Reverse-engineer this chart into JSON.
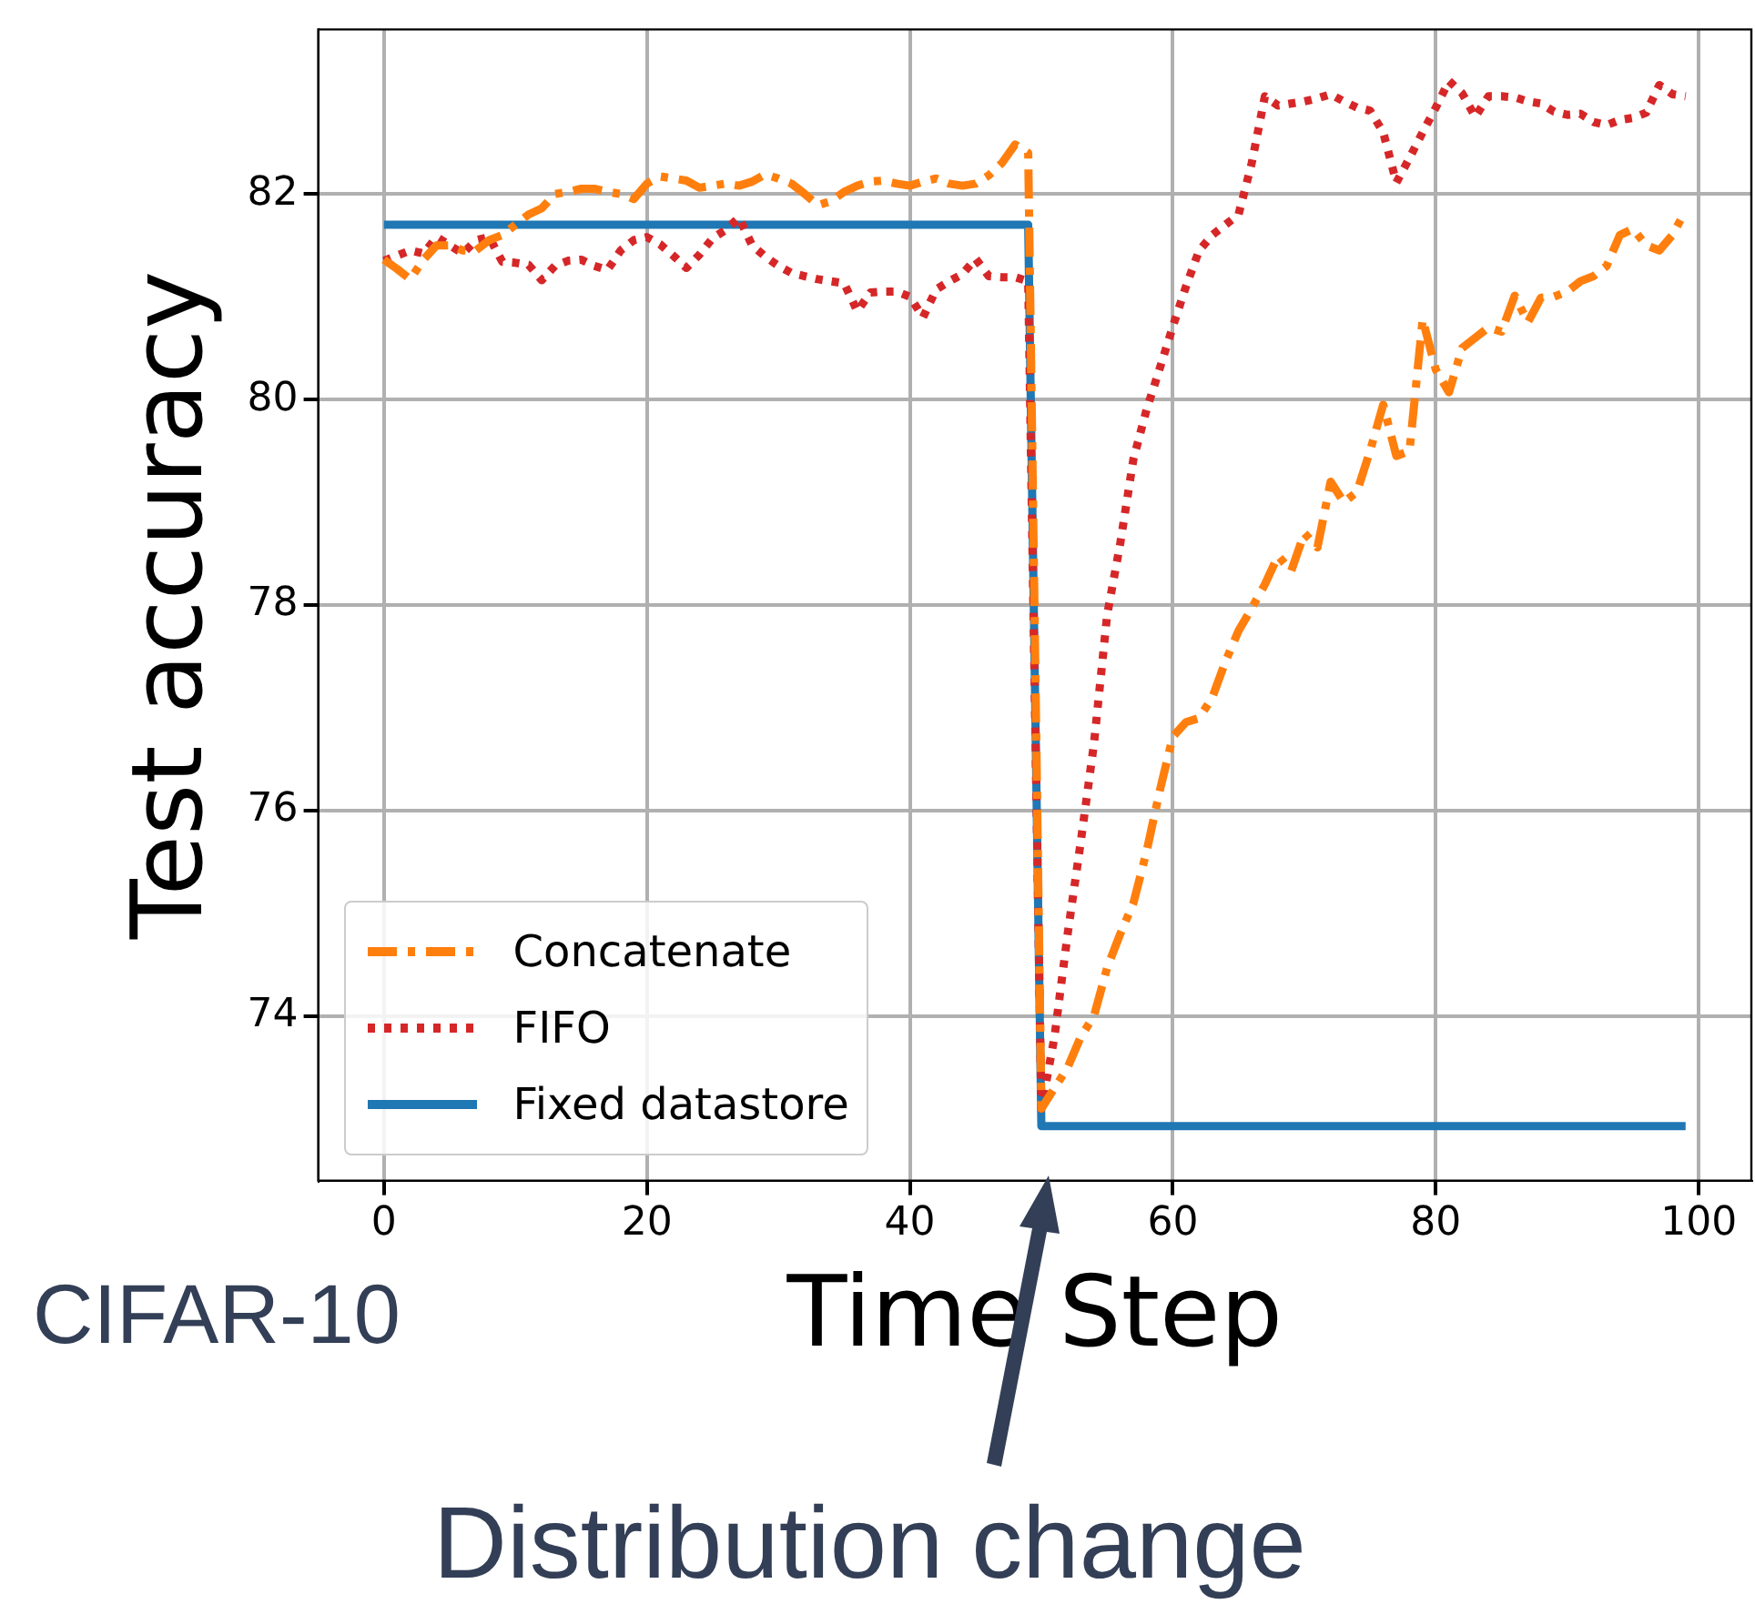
{
  "chart_data": {
    "type": "line",
    "xlabel": "Time Step",
    "ylabel": "Test accuracy",
    "x": [
      0,
      1,
      2,
      3,
      4,
      5,
      6,
      7,
      8,
      9,
      10,
      11,
      12,
      13,
      14,
      15,
      16,
      17,
      18,
      19,
      20,
      21,
      22,
      23,
      24,
      25,
      26,
      27,
      28,
      29,
      30,
      31,
      32,
      33,
      34,
      35,
      36,
      37,
      38,
      39,
      40,
      41,
      42,
      43,
      44,
      45,
      46,
      47,
      48,
      49,
      50,
      51,
      52,
      53,
      54,
      55,
      56,
      57,
      58,
      59,
      60,
      61,
      62,
      63,
      64,
      65,
      66,
      67,
      68,
      69,
      70,
      71,
      72,
      73,
      74,
      75,
      76,
      77,
      78,
      79,
      80,
      81,
      82,
      83,
      84,
      85,
      86,
      87,
      88,
      89,
      90,
      91,
      92,
      93,
      94,
      95,
      96,
      97,
      98,
      99
    ],
    "xlim": [
      -5,
      104
    ],
    "xticks": [
      0,
      20,
      40,
      60,
      80,
      100
    ],
    "ylim": [
      72.4,
      83.6
    ],
    "yticks": [
      74,
      76,
      78,
      80,
      82
    ],
    "grid": true,
    "legend": "bottom left",
    "marker": "none",
    "series": [
      {
        "name": "Concatenate",
        "color": "#ff7f0e",
        "line_style": "dashed",
        "values": [
          81.36,
          81.27,
          81.17,
          81.36,
          81.5,
          81.5,
          81.45,
          81.45,
          81.55,
          81.6,
          81.7,
          81.8,
          81.86,
          82.0,
          82.02,
          82.05,
          82.05,
          82.02,
          82.0,
          81.95,
          82.1,
          82.17,
          82.15,
          82.13,
          82.06,
          82.08,
          82.1,
          82.08,
          82.12,
          82.19,
          82.15,
          82.1,
          82.0,
          81.89,
          81.93,
          82.02,
          82.08,
          82.12,
          82.13,
          82.1,
          82.08,
          82.12,
          82.15,
          82.1,
          82.08,
          82.1,
          82.18,
          82.3,
          82.48,
          82.4,
          73.1,
          73.3,
          73.5,
          73.8,
          74.0,
          74.47,
          74.8,
          75.1,
          75.6,
          76.19,
          76.72,
          76.86,
          76.9,
          77.1,
          77.45,
          77.75,
          77.97,
          78.2,
          78.48,
          78.33,
          78.7,
          78.56,
          79.2,
          79.0,
          79.1,
          79.5,
          79.95,
          79.45,
          79.5,
          80.78,
          80.29,
          80.07,
          80.5,
          80.6,
          80.7,
          80.66,
          81.01,
          80.75,
          80.99,
          81.0,
          81.05,
          81.15,
          81.2,
          81.3,
          81.6,
          81.66,
          81.5,
          81.45,
          81.6,
          81.84
        ]
      },
      {
        "name": "FIFO",
        "color": "#d62728",
        "line_style": "dotted",
        "values": [
          81.35,
          81.4,
          81.45,
          81.42,
          81.58,
          81.5,
          81.42,
          81.55,
          81.58,
          81.34,
          81.33,
          81.31,
          81.16,
          81.3,
          81.35,
          81.36,
          81.3,
          81.26,
          81.45,
          81.55,
          81.58,
          81.51,
          81.4,
          81.28,
          81.41,
          81.57,
          81.65,
          81.77,
          81.5,
          81.39,
          81.3,
          81.23,
          81.2,
          81.17,
          81.15,
          81.13,
          80.86,
          81.04,
          81.05,
          81.05,
          81.0,
          80.8,
          81.07,
          81.15,
          81.22,
          81.37,
          81.2,
          81.19,
          81.19,
          81.15,
          73.1,
          73.8,
          74.8,
          75.7,
          76.65,
          77.9,
          78.6,
          79.42,
          79.9,
          80.3,
          80.71,
          81.1,
          81.45,
          81.6,
          81.7,
          81.8,
          82.3,
          82.95,
          82.86,
          82.88,
          82.9,
          82.93,
          82.97,
          82.9,
          82.84,
          82.81,
          82.6,
          82.11,
          82.35,
          82.6,
          82.84,
          83.1,
          82.98,
          82.75,
          82.95,
          82.95,
          82.94,
          82.9,
          82.88,
          82.8,
          82.77,
          82.78,
          82.7,
          82.67,
          82.72,
          82.74,
          82.79,
          83.06,
          82.97,
          82.95
        ]
      },
      {
        "name": "Fixed datastore",
        "color": "#1f77b4",
        "line_style": "solid",
        "values": [
          81.7,
          81.7,
          81.7,
          81.7,
          81.7,
          81.7,
          81.7,
          81.7,
          81.7,
          81.7,
          81.7,
          81.7,
          81.7,
          81.7,
          81.7,
          81.7,
          81.7,
          81.7,
          81.7,
          81.7,
          81.7,
          81.7,
          81.7,
          81.7,
          81.7,
          81.7,
          81.7,
          81.7,
          81.7,
          81.7,
          81.7,
          81.7,
          81.7,
          81.7,
          81.7,
          81.7,
          81.7,
          81.7,
          81.7,
          81.7,
          81.7,
          81.7,
          81.7,
          81.7,
          81.7,
          81.7,
          81.7,
          81.7,
          81.7,
          81.7,
          72.93,
          72.93,
          72.93,
          72.93,
          72.93,
          72.93,
          72.93,
          72.93,
          72.93,
          72.93,
          72.93,
          72.93,
          72.93,
          72.93,
          72.93,
          72.93,
          72.93,
          72.93,
          72.93,
          72.93,
          72.93,
          72.93,
          72.93,
          72.93,
          72.93,
          72.93,
          72.93,
          72.93,
          72.93,
          72.93,
          72.93,
          72.93,
          72.93,
          72.93,
          72.93,
          72.93,
          72.93,
          72.93,
          72.93,
          72.93,
          72.93,
          72.93,
          72.93,
          72.93,
          72.93,
          72.93,
          72.93,
          72.93,
          72.93,
          72.93
        ]
      }
    ],
    "annotations": [
      "CIFAR-10",
      "Distribution change"
    ]
  }
}
